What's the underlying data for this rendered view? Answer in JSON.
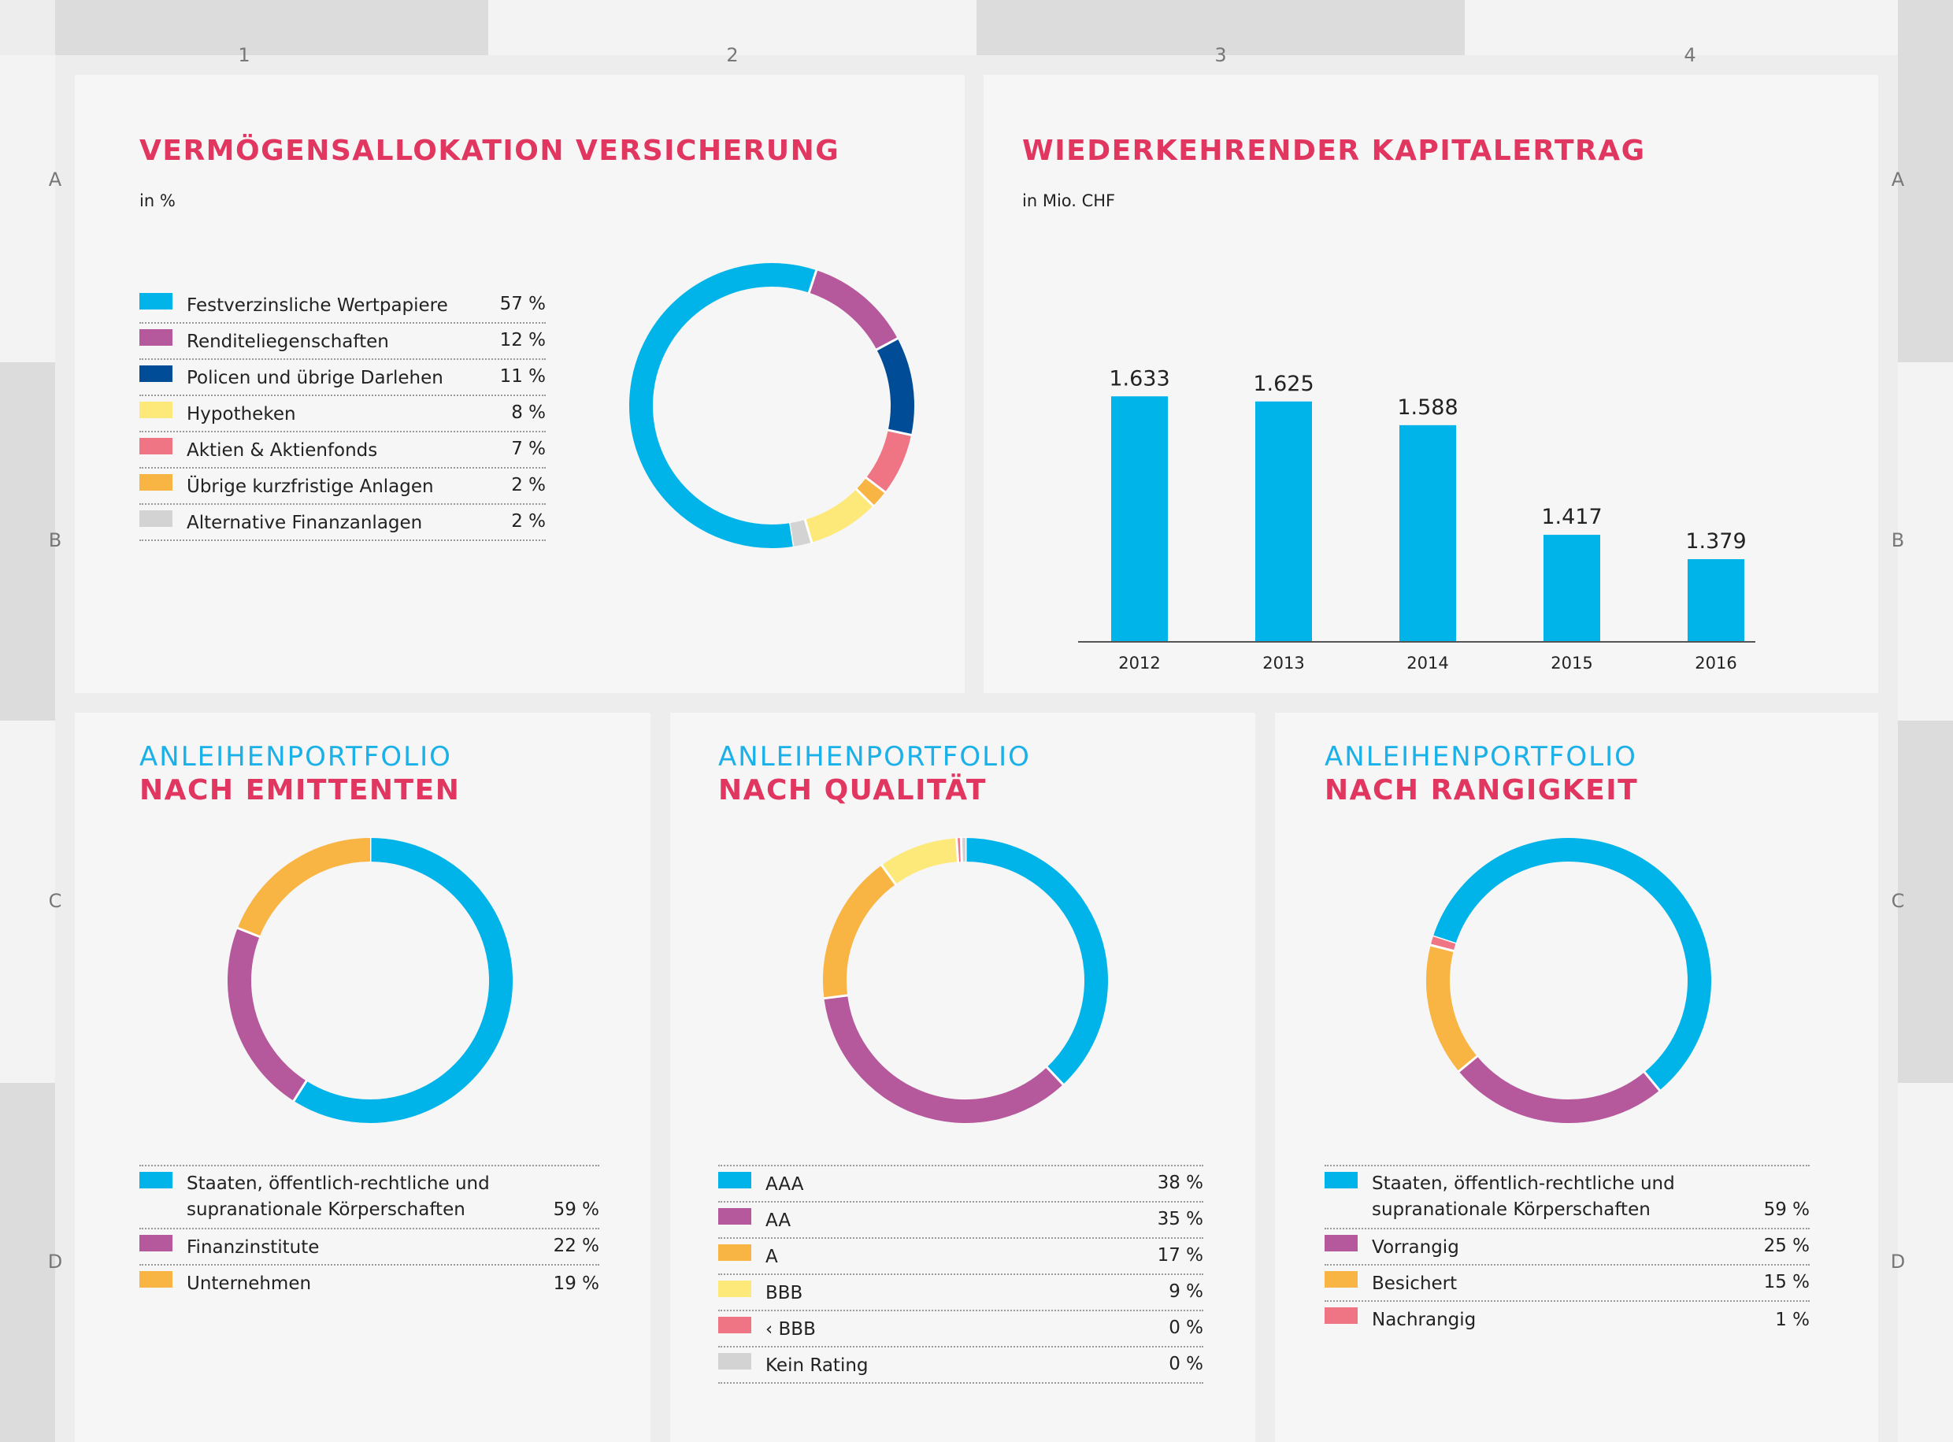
{
  "grid": {
    "columns": [
      "1",
      "2",
      "3",
      "4"
    ],
    "rows_left": [
      "A",
      "B",
      "C",
      "D"
    ],
    "rows_right": [
      "A",
      "B",
      "C",
      "D"
    ]
  },
  "colors": {
    "cyan": "#00b4ea",
    "magenta": "#b6589c",
    "navy": "#004c97",
    "yellow": "#fde97a",
    "pink": "#ef7484",
    "orange": "#f8b544",
    "grey": "#d3d3d3",
    "red_title": "#e0365f",
    "blue_title": "#1ab0e8"
  },
  "asset_allocation": {
    "title": "VERMÖGENSALLOKATION VERSICHERUNG",
    "unit": "in %",
    "items": [
      {
        "label": "Festverzinsliche Wertpapiere",
        "value": "57 %",
        "color": "#00b4ea"
      },
      {
        "label": "Renditeliegenschaften",
        "value": "12 %",
        "color": "#b6589c"
      },
      {
        "label": "Policen und übrige Darlehen",
        "value": "11 %",
        "color": "#004c97"
      },
      {
        "label": "Hypotheken",
        "value": "8 %",
        "color": "#fde97a"
      },
      {
        "label": "Aktien & Aktienfonds",
        "value": "7 %",
        "color": "#ef7484"
      },
      {
        "label": "Übrige kurzfristige Anlagen",
        "value": "2 %",
        "color": "#f8b544"
      },
      {
        "label": "Alternative Finanzanlagen",
        "value": "2 %",
        "color": "#d3d3d3"
      }
    ]
  },
  "capital_income": {
    "title": "WIEDERKEHRENDER KAPITALERTRAG",
    "unit": "in Mio. CHF"
  },
  "bonds_issuer": {
    "title_line1": "ANLEIHENPORTFOLIO",
    "title_line2": "NACH EMITTENTEN",
    "items": [
      {
        "label_line1": "Staaten, öffentlich-rechtliche und",
        "label_line2": "supranationale Körperschaften",
        "value": "59 %",
        "color": "#00b4ea"
      },
      {
        "label_line1": "Finanzinstitute",
        "label_line2": "",
        "value": "22 %",
        "color": "#b6589c"
      },
      {
        "label_line1": "Unternehmen",
        "label_line2": "",
        "value": "19 %",
        "color": "#f8b544"
      }
    ]
  },
  "bonds_quality": {
    "title_line1": "ANLEIHENPORTFOLIO",
    "title_line2": "NACH QUALITÄT",
    "items": [
      {
        "label": "AAA",
        "value": "38 %",
        "color": "#00b4ea"
      },
      {
        "label": "AA",
        "value": "35 %",
        "color": "#b6589c"
      },
      {
        "label": "A",
        "value": "17 %",
        "color": "#f8b544"
      },
      {
        "label": "BBB",
        "value": "9 %",
        "color": "#fde97a"
      },
      {
        "label": "‹ BBB",
        "value": "0 %",
        "color": "#ef7484"
      },
      {
        "label": "Kein Rating",
        "value": "0 %",
        "color": "#d3d3d3"
      }
    ]
  },
  "bonds_seniority": {
    "title_line1": "ANLEIHENPORTFOLIO",
    "title_line2": "NACH RANGIGKEIT",
    "items": [
      {
        "label_line1": "Staaten, öffentlich-rechtliche und",
        "label_line2": "supranationale Körperschaften",
        "value": "59 %",
        "color": "#00b4ea"
      },
      {
        "label_line1": "Vorrangig",
        "label_line2": "",
        "value": "25 %",
        "color": "#b6589c"
      },
      {
        "label_line1": "Besichert",
        "label_line2": "",
        "value": "15 %",
        "color": "#f8b544"
      },
      {
        "label_line1": "Nachrangig",
        "label_line2": "",
        "value": "1 %",
        "color": "#ef7484"
      }
    ]
  },
  "chart_data": [
    {
      "type": "pie",
      "title": "VERMÖGENSALLOKATION VERSICHERUNG",
      "unit": "in %",
      "categories": [
        "Festverzinsliche Wertpapiere",
        "Renditeliegenschaften",
        "Policen und übrige Darlehen",
        "Hypotheken",
        "Aktien & Aktienfonds",
        "Übrige kurzfristige Anlagen",
        "Alternative Finanzanlagen"
      ],
      "values": [
        57,
        12,
        11,
        8,
        7,
        2,
        2
      ],
      "colors": [
        "#00b4ea",
        "#b6589c",
        "#004c97",
        "#fde97a",
        "#ef7484",
        "#f8b544",
        "#d3d3d3"
      ],
      "order": [
        0,
        1,
        2,
        4,
        5,
        3,
        6
      ],
      "start_deg": 171
    },
    {
      "type": "bar",
      "title": "WIEDERKEHRENDER KAPITALERTRAG",
      "unit": "in Mio. CHF",
      "categories": [
        "2012",
        "2013",
        "2014",
        "2015",
        "2016"
      ],
      "values": [
        1633,
        1625,
        1588,
        1417,
        1379
      ],
      "value_labels": [
        "1.633",
        "1.625",
        "1.588",
        "1.417",
        "1.379"
      ],
      "ylim": [
        1250,
        1680
      ],
      "color": "#00b4ea"
    },
    {
      "type": "pie",
      "title": "ANLEIHENPORTFOLIO NACH EMITTENTEN",
      "categories": [
        "Staaten, öffentlich-rechtliche und supranationale Körperschaften",
        "Finanzinstitute",
        "Unternehmen"
      ],
      "values": [
        59,
        22,
        19
      ],
      "colors": [
        "#00b4ea",
        "#b6589c",
        "#f8b544"
      ],
      "order": [
        0,
        1,
        2
      ],
      "start_deg": 0
    },
    {
      "type": "pie",
      "title": "ANLEIHENPORTFOLIO NACH QUALITÄT",
      "categories": [
        "AAA",
        "AA",
        "A",
        "BBB",
        "‹ BBB",
        "Kein Rating"
      ],
      "values": [
        38,
        35,
        17,
        9,
        0.5,
        0.5
      ],
      "colors": [
        "#00b4ea",
        "#b6589c",
        "#f8b544",
        "#fde97a",
        "#ef7484",
        "#d3d3d3"
      ],
      "order": [
        0,
        1,
        2,
        3,
        4,
        5
      ],
      "start_deg": 0
    },
    {
      "type": "pie",
      "title": "ANLEIHENPORTFOLIO NACH RANGIGKEIT",
      "categories": [
        "Staaten, öffentlich-rechtliche und supranationale Körperschaften",
        "Vorrangig",
        "Besichert",
        "Nachrangig"
      ],
      "values": [
        59,
        25,
        15,
        1
      ],
      "colors": [
        "#00b4ea",
        "#b6589c",
        "#f8b544",
        "#ef7484"
      ],
      "order": [
        0,
        1,
        2,
        3
      ],
      "start_deg": 288
    }
  ]
}
